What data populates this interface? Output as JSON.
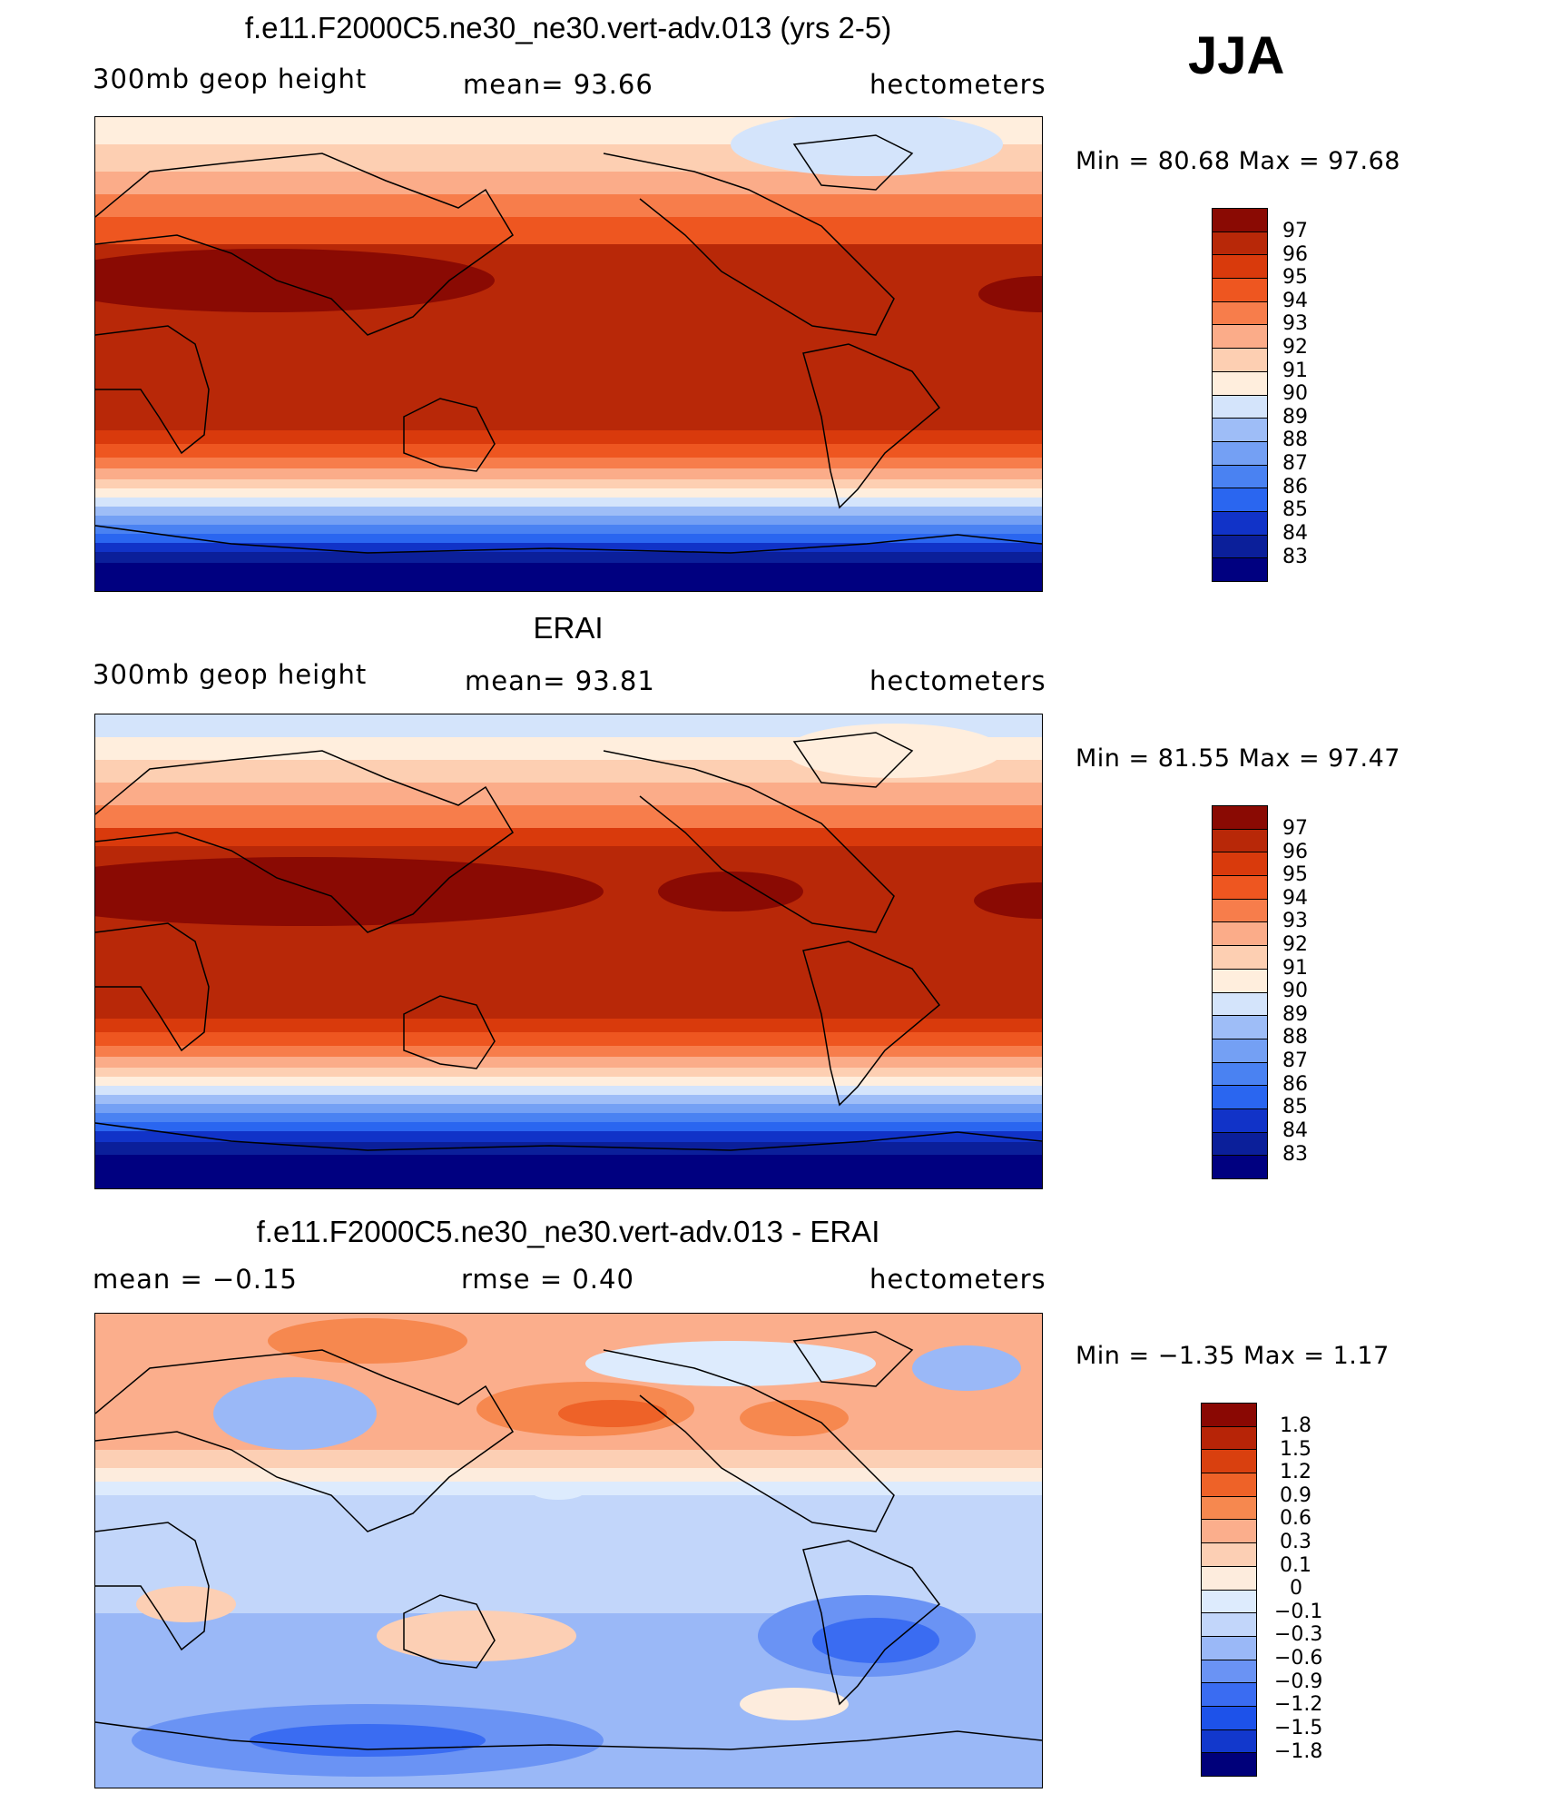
{
  "season": "JJA",
  "colors": {
    "abs": [
      "#000080",
      "#0b1f9a",
      "#1133c8",
      "#1a4ee6",
      "#2a66f0",
      "#4a82f2",
      "#74a0f4",
      "#9ebdf7",
      "#d4e4fb",
      "#ffeedd",
      "#fdcfb2",
      "#fbac89",
      "#f77d4b",
      "#ee5620",
      "#d93a0c",
      "#b82808",
      "#8a0a03"
    ],
    "diff": [
      "#00007a",
      "#0a1fa0",
      "#1238cc",
      "#1d52ea",
      "#3a6cf2",
      "#6a93f4",
      "#9ab8f7",
      "#c2d6fa",
      "#ddebfd",
      "#fdecdd",
      "#fccfb4",
      "#fbae8c",
      "#f6884f",
      "#ee6228",
      "#d9400f",
      "#b72407",
      "#8a0803"
    ]
  },
  "panels": [
    {
      "id": "model",
      "title": "f.e11.F2000C5.ne30_ne30.vert-adv.013 (yrs 2-5)",
      "variable": "300mb geop height",
      "stat": "mean=  93.66",
      "units": "hectometers",
      "minmax": "Min =   80.68  Max =   97.68",
      "levels": [
        "97",
        "96",
        "95",
        "94",
        "93",
        "92",
        "91",
        "90",
        "89",
        "88",
        "87",
        "86",
        "85",
        "84",
        "83"
      ]
    },
    {
      "id": "obs",
      "title": "ERAI",
      "variable": "300mb geop height",
      "stat": "mean=  93.81",
      "units": "hectometers",
      "minmax": "Min =   81.55  Max =   97.47",
      "levels": [
        "97",
        "96",
        "95",
        "94",
        "93",
        "92",
        "91",
        "90",
        "89",
        "88",
        "87",
        "86",
        "85",
        "84",
        "83"
      ]
    },
    {
      "id": "diff",
      "title": "f.e11.F2000C5.ne30_ne30.vert-adv.013 - ERAI",
      "variable": "mean =   −0.15",
      "stat": "rmse =     0.40",
      "units": "hectometers",
      "minmax": "Min =   −1.35  Max =     1.17",
      "levels": [
        "1.8",
        "1.5",
        "1.2",
        "0.9",
        "0.6",
        "0.3",
        "0.1",
        "0",
        "−0.1",
        "−0.3",
        "−0.6",
        "−0.9",
        "−1.2",
        "−1.5",
        "−1.8"
      ]
    }
  ]
}
